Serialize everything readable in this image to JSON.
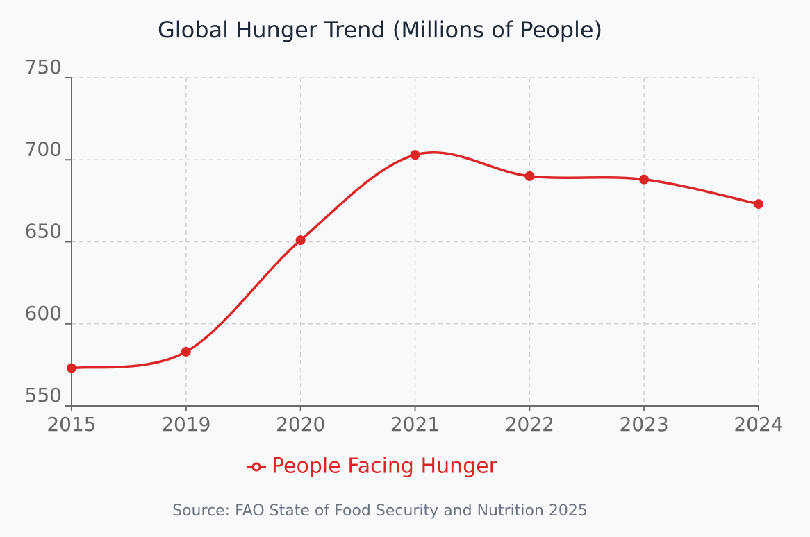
{
  "chart_data": {
    "type": "line",
    "title": "Global Hunger Trend (Millions of People)",
    "categories": [
      "2015",
      "2019",
      "2020",
      "2021",
      "2022",
      "2023",
      "2024"
    ],
    "series": [
      {
        "name": "People Facing Hunger",
        "color": "#dc2626",
        "values": [
          573,
          583,
          651,
          703,
          690,
          688,
          673
        ]
      }
    ],
    "ylim": [
      550,
      750
    ],
    "yticks": [
      550,
      600,
      650,
      700,
      750
    ],
    "grid": true,
    "source": "Source: FAO State of Food Security and Nutrition 2025"
  }
}
